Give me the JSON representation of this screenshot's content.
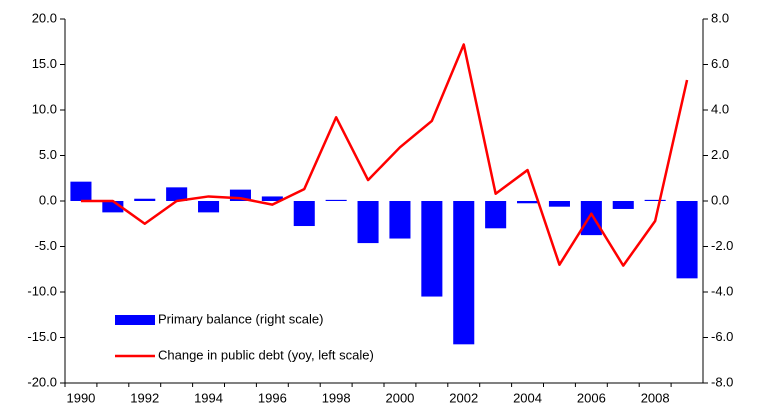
{
  "chart_data": {
    "type": "bar-line",
    "categories": [
      "1990",
      null,
      "1992",
      null,
      "1994",
      null,
      "1996",
      null,
      "1998",
      null,
      "2000",
      null,
      "2002",
      null,
      "2004",
      null,
      "2006",
      null,
      "2008",
      null
    ],
    "series": [
      {
        "name": "Primary balance (right scale)",
        "color": "#0000ff",
        "type": "bar",
        "axis": "y2",
        "values": [
          0.85,
          -0.5,
          0.1,
          0.6,
          -0.5,
          0.5,
          0.2,
          -1.1,
          0.05,
          -1.85,
          -1.65,
          -4.2,
          -6.3,
          -1.2,
          -0.1,
          -0.25,
          -1.5,
          -0.35,
          0.05,
          -3.4
        ]
      },
      {
        "name": "Change in public debt (yoy, left scale)",
        "color": "#ff0000",
        "type": "line",
        "values": [
          0,
          0,
          -2.5,
          0,
          0.5,
          0.3,
          -0.4,
          1.3,
          9.2,
          2.3,
          5.9,
          8.8,
          17.2,
          0.8,
          3.4,
          -7.0,
          -1.4,
          -7.1,
          -2.2,
          13.3
        ]
      }
    ],
    "ylim": [
      -20,
      20
    ],
    "yticks": [
      {
        "value": -20,
        "label": "-20.0"
      },
      {
        "value": -15,
        "label": "-15.0"
      },
      {
        "value": -10,
        "label": "-10.0"
      },
      {
        "value": -5,
        "label": "-5.0"
      },
      {
        "value": 0,
        "label": "0.0"
      },
      {
        "value": 5,
        "label": "5.0"
      },
      {
        "value": 10,
        "label": "10.0"
      },
      {
        "value": 15,
        "label": "15.0"
      },
      {
        "value": 20,
        "label": "20.0"
      }
    ],
    "y2lim": [
      -8,
      8
    ],
    "y2ticks": [
      {
        "value": -8,
        "label": "-8.0"
      },
      {
        "value": -6,
        "label": "-6.0"
      },
      {
        "value": -4,
        "label": "-4.0"
      },
      {
        "value": -2,
        "label": "-2.0"
      },
      {
        "value": 0,
        "label": "0.0"
      },
      {
        "value": 2,
        "label": "2.0"
      },
      {
        "value": 4,
        "label": "4.0"
      },
      {
        "value": 6,
        "label": "6.0"
      },
      {
        "value": 8,
        "label": "8.0"
      }
    ]
  }
}
